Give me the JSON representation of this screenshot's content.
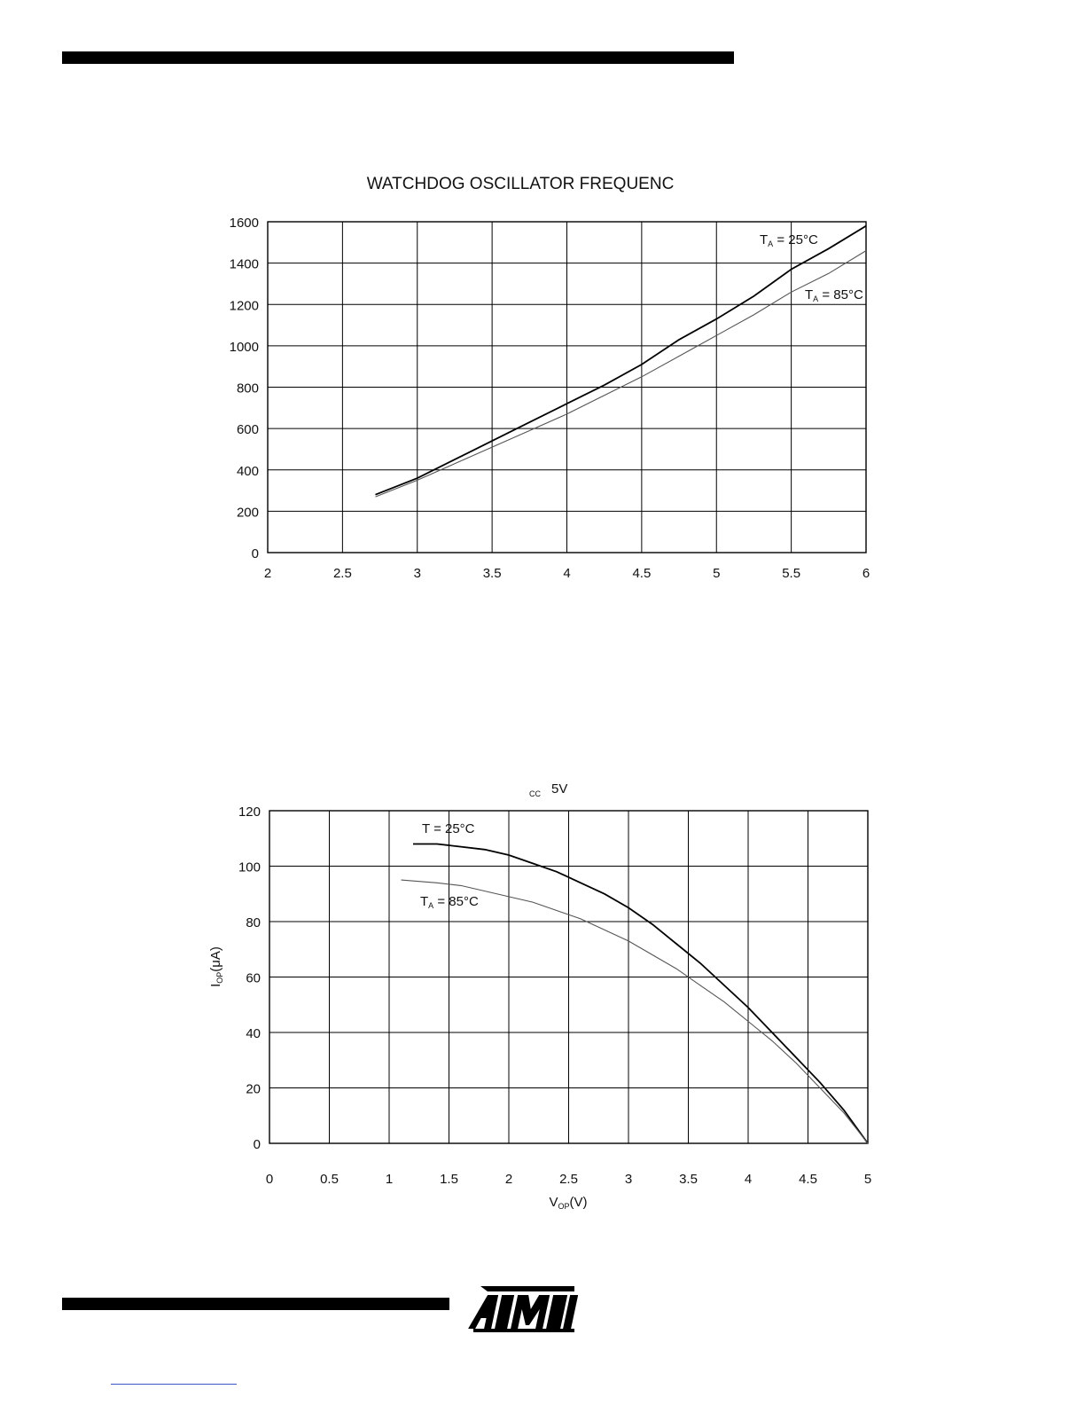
{
  "chart_data": [
    {
      "type": "line",
      "title": "WATCHDOG OSCILLATOR FREQUENC",
      "xlim": [
        2,
        6
      ],
      "ylim": [
        0,
        1600
      ],
      "x_ticks": [
        "2",
        "2.5",
        "3",
        "3.5",
        "4",
        "4.5",
        "5",
        "5.5",
        "6"
      ],
      "y_ticks": [
        "0",
        "200",
        "400",
        "600",
        "800",
        "1000",
        "1200",
        "1400",
        "1600"
      ],
      "x_grid": [
        2,
        2.5,
        3,
        3.5,
        4,
        4.5,
        5,
        5.5,
        6
      ],
      "y_grid": [
        0,
        200,
        400,
        600,
        800,
        1000,
        1200,
        1400,
        1600
      ],
      "grid": true,
      "series": [
        {
          "name": "TA = 25°C",
          "label_main": "T",
          "label_sub": "A",
          "label_rest": " = 25°C",
          "stroke": "#000000",
          "x": [
            2.72,
            3.0,
            3.25,
            3.5,
            3.75,
            4.0,
            4.25,
            4.5,
            4.75,
            5.0,
            5.25,
            5.5,
            5.75,
            6.0
          ],
          "y": [
            280,
            360,
            450,
            540,
            630,
            720,
            810,
            910,
            1030,
            1130,
            1240,
            1370,
            1470,
            1580
          ]
        },
        {
          "name": "TA = 85°C",
          "label_main": "T",
          "label_sub": "A",
          "label_rest": " = 85°C",
          "stroke": "#555555",
          "x": [
            2.72,
            3.0,
            3.25,
            3.5,
            3.75,
            4.0,
            4.25,
            4.5,
            4.75,
            5.0,
            5.25,
            5.5,
            5.75,
            6.0
          ],
          "y": [
            270,
            350,
            430,
            510,
            590,
            670,
            760,
            850,
            950,
            1050,
            1150,
            1260,
            1350,
            1460
          ]
        }
      ]
    },
    {
      "type": "line",
      "title_sub": "CC",
      "title_rest": "5V",
      "xlabel_main": "V",
      "xlabel_sub": "OP",
      "xlabel_rest": "(V)",
      "ylabel_main": "I",
      "ylabel_sub": "OP",
      "ylabel_rest": "(μA)",
      "xlim": [
        0,
        5
      ],
      "ylim": [
        0,
        120
      ],
      "x_ticks": [
        "0",
        "0.5",
        "1",
        "1.5",
        "2",
        "2.5",
        "3",
        "3.5",
        "4",
        "4.5",
        "5"
      ],
      "y_ticks": [
        "0",
        "20",
        "40",
        "60",
        "80",
        "100",
        "120"
      ],
      "x_grid": [
        0,
        0.5,
        1,
        1.5,
        2,
        2.5,
        3,
        3.5,
        4,
        4.5,
        5
      ],
      "y_grid": [
        0,
        20,
        40,
        60,
        80,
        100,
        120
      ],
      "grid": true,
      "series": [
        {
          "name": "T = 25°C",
          "label_main": "T",
          "label_sub": "",
          "label_rest": " = 25°C",
          "stroke": "#000000",
          "x": [
            1.2,
            1.4,
            1.6,
            1.8,
            2.0,
            2.2,
            2.4,
            2.6,
            2.8,
            3.0,
            3.2,
            3.4,
            3.6,
            3.8,
            4.0,
            4.2,
            4.4,
            4.6,
            4.8,
            5.0
          ],
          "y": [
            108,
            108,
            107,
            106,
            104,
            101,
            98,
            94,
            90,
            85,
            79,
            72,
            65,
            57,
            49,
            40,
            31,
            22,
            12,
            0
          ]
        },
        {
          "name": "TA = 85°C",
          "label_main": "T",
          "label_sub": "A",
          "label_rest": " = 85°C",
          "stroke": "#555555",
          "x": [
            1.1,
            1.4,
            1.6,
            1.8,
            2.0,
            2.2,
            2.4,
            2.6,
            2.8,
            3.0,
            3.2,
            3.4,
            3.6,
            3.8,
            4.0,
            4.2,
            4.4,
            4.6,
            4.8,
            5.0
          ],
          "y": [
            95,
            94,
            93,
            91,
            89,
            87,
            84,
            81,
            77,
            73,
            68,
            63,
            57,
            51,
            44,
            37,
            29,
            20,
            11,
            0
          ]
        }
      ]
    }
  ],
  "footer": {
    "logo_text": "ATMEL"
  }
}
